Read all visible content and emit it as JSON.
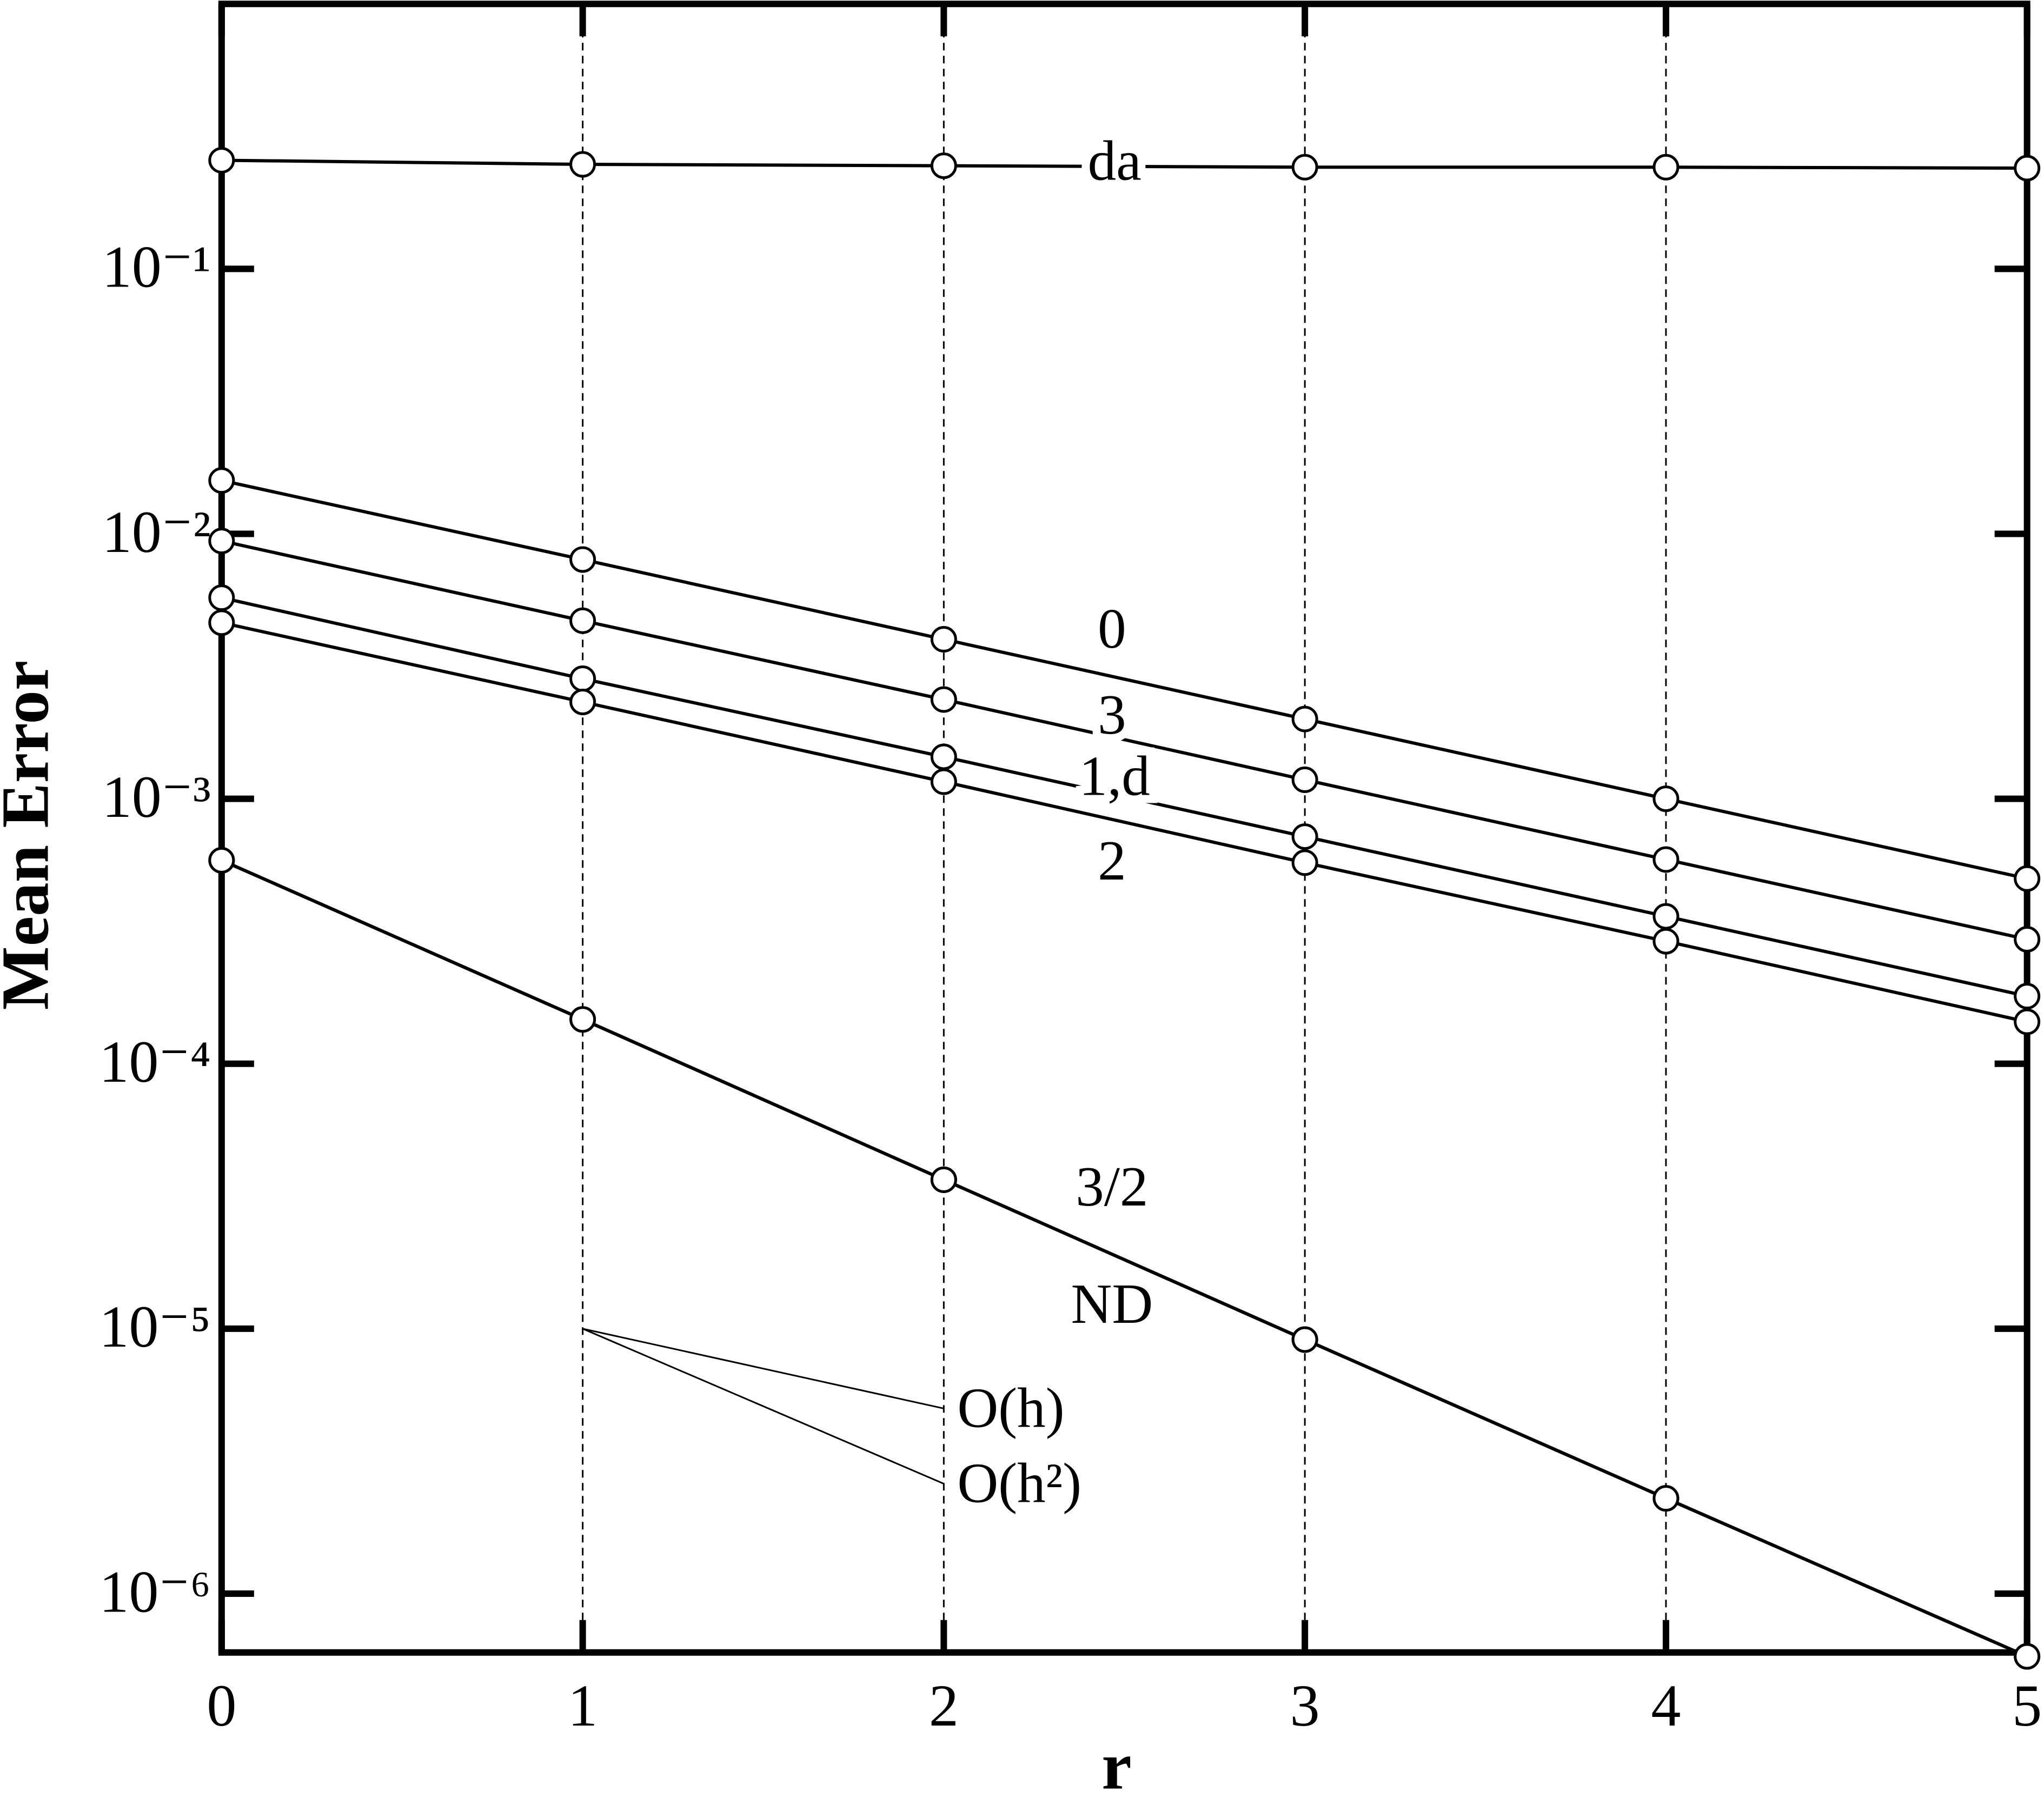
{
  "chart_data": {
    "type": "line",
    "x_label": "r",
    "y_label": "Mean Error",
    "xlim": [
      0,
      5
    ],
    "xticks": [
      0,
      1,
      2,
      3,
      4,
      5
    ],
    "ylim": [
      6e-07,
      1
    ],
    "log_y": true,
    "yticks": [
      {
        "value": 0.1,
        "label": "10⁻¹"
      },
      {
        "value": 0.01,
        "label": "10⁻²"
      },
      {
        "value": 0.001,
        "label": "10⁻³"
      },
      {
        "value": 0.0001,
        "label": "10⁻⁴"
      },
      {
        "value": 1e-05,
        "label": "10⁻⁵"
      },
      {
        "value": 1e-06,
        "label": "10⁻⁶"
      }
    ],
    "x_grid": true,
    "markers": true,
    "x": [
      0,
      1,
      2,
      3,
      4,
      5
    ],
    "series": [
      {
        "name": "da",
        "color": "#000000",
        "values": [
          0.257,
          0.248,
          0.245,
          0.242,
          0.242,
          0.24
        ]
      },
      {
        "name": "0",
        "color": "#000000",
        "values": [
          0.0159,
          0.008,
          0.004,
          0.002,
          0.001,
          0.0005
        ]
      },
      {
        "name": "3",
        "color": "#000000",
        "values": [
          0.0094,
          0.0047,
          0.00237,
          0.00118,
          0.00059,
          0.000295
        ]
      },
      {
        "name": "1,d",
        "color": "#000000",
        "values": [
          0.00574,
          0.00284,
          0.00144,
          0.00072,
          0.00036,
          0.00018
        ]
      },
      {
        "name": "2",
        "color": "#000000",
        "values": [
          0.00462,
          0.00232,
          0.00116,
          0.000574,
          0.00029,
          0.000144
        ]
      },
      {
        "name": "3/2",
        "color": "#000000",
        "values": [
          0.000586,
          0.000147,
          3.65e-05,
          9.1e-06,
          2.29e-06,
          5.8e-07
        ]
      },
      {
        "name": "ND",
        "color": "#000000",
        "values": [
          0.000586,
          0.000147,
          3.65e-05,
          9.1e-06,
          2.29e-06,
          5.8e-07
        ]
      }
    ],
    "reference_lines": [
      {
        "name": "O(h)",
        "x": [
          1,
          2
        ],
        "values": [
          1e-05,
          5e-06
        ]
      },
      {
        "name": "O(h²)",
        "x": [
          1,
          2
        ],
        "values": [
          1e-05,
          2.6e-06
        ]
      }
    ]
  }
}
